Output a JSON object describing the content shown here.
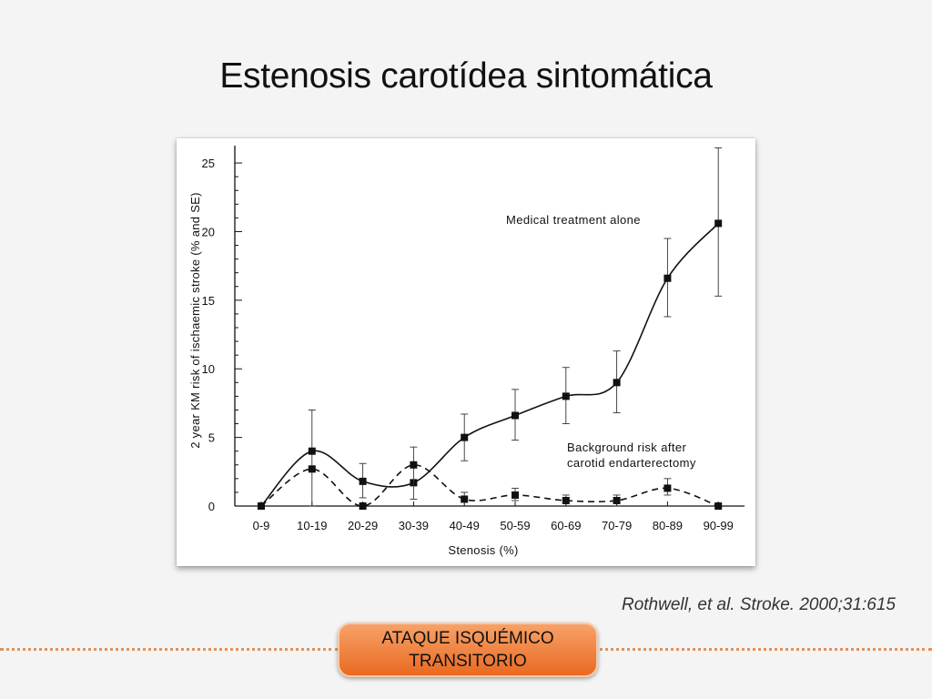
{
  "slide": {
    "title": "Estenosis carotídea sintomática",
    "citation": "Rothwell, et al. Stroke. 2000;31:615",
    "badge_line1": "ATAQUE ISQUÉMICO",
    "badge_line2": "TRANSITORIO",
    "colors": {
      "badge": "#ec7a34",
      "dots": "#e0935a",
      "background": "#f3f4f3"
    }
  },
  "chart_data": {
    "type": "line",
    "title": "",
    "xlabel": "Stenosis (%)",
    "ylabel": "2 year KM risk of ischaemic stroke (% and SE)",
    "categories": [
      "0-9",
      "10-19",
      "20-29",
      "30-39",
      "40-49",
      "50-59",
      "60-69",
      "70-79",
      "80-89",
      "90-99"
    ],
    "ylim": [
      0,
      26
    ],
    "yticks": [
      0,
      5,
      10,
      15,
      20,
      25
    ],
    "grid": false,
    "series": [
      {
        "name": "Medical treatment alone",
        "line_style": "solid",
        "values": [
          0,
          4.0,
          1.8,
          1.7,
          5.0,
          6.6,
          8.0,
          9.0,
          16.6,
          20.6
        ],
        "err_low": [
          null,
          0,
          0.6,
          null,
          3.3,
          4.8,
          6.0,
          6.8,
          13.8,
          15.3
        ],
        "err_high": [
          null,
          7.0,
          3.1,
          null,
          6.7,
          8.5,
          10.1,
          11.3,
          19.5,
          26.1
        ]
      },
      {
        "name": "Background risk after carotid endarterectomy",
        "line_style": "dashed",
        "values": [
          0,
          2.7,
          0,
          3.0,
          0.5,
          0.8,
          0.4,
          0.4,
          1.3,
          0
        ],
        "err_low": [
          null,
          null,
          null,
          0.5,
          null,
          0.4,
          null,
          0,
          0.8,
          null
        ],
        "err_high": [
          null,
          null,
          null,
          4.3,
          1.0,
          1.3,
          0.8,
          0.8,
          2.0,
          null
        ]
      }
    ],
    "labels": {
      "medical": "Medical treatment alone",
      "background_line1": "Background risk after",
      "background_line2": "carotid endarterectomy"
    }
  }
}
